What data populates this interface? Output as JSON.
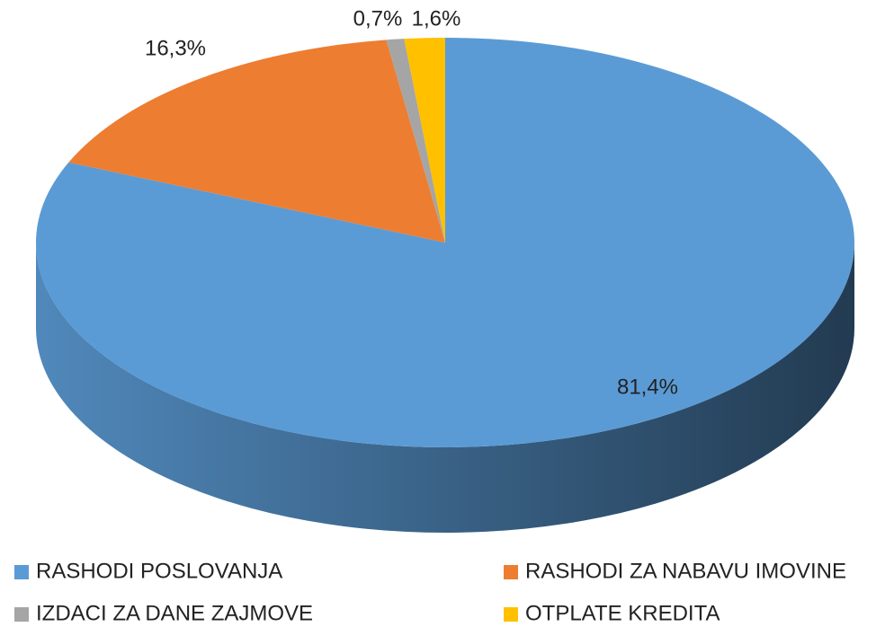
{
  "chart_data": {
    "type": "pie3d",
    "categories": [
      "RASHODI POSLOVANJA",
      "RASHODI ZA NABAVU IMOVINE",
      "IZDACI ZA DANE ZAJMOVE",
      "OTPLATE KREDITA"
    ],
    "values": [
      81.4,
      16.3,
      0.7,
      1.6
    ],
    "value_labels": [
      "81,4%",
      "16,3%",
      "0,7%",
      "1,6%"
    ],
    "colors": [
      "#5b9bd5",
      "#ed7d31",
      "#a5a5a5",
      "#ffc000"
    ],
    "legend": "bottom"
  }
}
